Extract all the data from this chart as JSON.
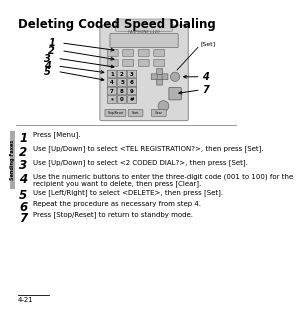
{
  "title": "Deleting Coded Speed Dialing",
  "bg_color": "#ffffff",
  "title_color": "#000000",
  "title_fontsize": 8.5,
  "steps": [
    {
      "num": "1",
      "text": "Press [Menu]."
    },
    {
      "num": "2",
      "text": "Use [Up/Down] to select <TEL REGISTRATION?>, then press [Set]."
    },
    {
      "num": "3",
      "text": "Use [Up/Down] to select <2 CODED DIAL?>, then press [Set]."
    },
    {
      "num": "4",
      "text": "Use the numeric buttons to enter the three-digit code (001 to 100) for the\nrecipient you want to delete, then press [Clear]."
    },
    {
      "num": "5",
      "text": "Use [Left/Right] to select <DELETE>, then press [Set]."
    },
    {
      "num": "6",
      "text": "Repeat the procedure as necessary from step 4."
    },
    {
      "num": "7",
      "text": "Press [Stop/Reset] to return to standby mode."
    }
  ],
  "page_num": "4-21",
  "sidebar_text": "Sending Faxes",
  "machine_label": "FAXPHONE L120",
  "arrow_nums_left": [
    "1",
    "2",
    "3",
    "4",
    "5"
  ],
  "arrow_nums_right": [
    "4",
    "7"
  ],
  "set_label": "[Set]"
}
